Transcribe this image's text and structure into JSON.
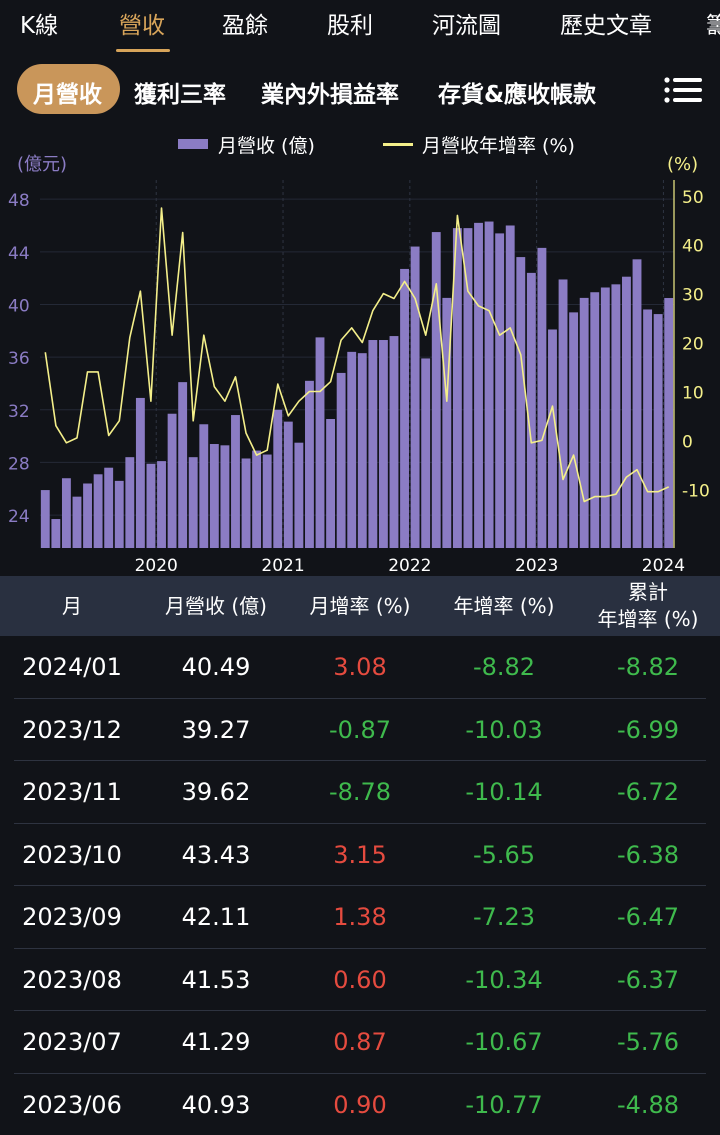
{
  "top_tabs": [
    {
      "label": "K線",
      "active": false
    },
    {
      "label": "營收",
      "active": true
    },
    {
      "label": "盈餘",
      "active": false
    },
    {
      "label": "股利",
      "active": false
    },
    {
      "label": "河流圖",
      "active": false
    },
    {
      "label": "歷史文章",
      "active": false
    },
    {
      "label": "籌",
      "active": false
    }
  ],
  "sub_tabs": [
    {
      "label": "月營收",
      "active": true
    },
    {
      "label": "獲利三率",
      "active": false
    },
    {
      "label": "業內外損益率",
      "active": false
    },
    {
      "label": "存貨&應收帳款",
      "active": false
    }
  ],
  "menu_icon": "menu-icon",
  "colors": {
    "accent": "#c9965a",
    "bar": "#8b7cc4",
    "line": "#f4ef8a",
    "positive": "#e54b3f",
    "negative": "#3fba4d"
  },
  "chart_data": {
    "type": "bar+line",
    "left_axis_label": "(億元)",
    "right_axis_label": "(%)",
    "legend": [
      {
        "name": "月營收 (億)",
        "type": "bar"
      },
      {
        "name": "月營收年增率 (%)",
        "type": "line"
      }
    ],
    "left_ylim": [
      21.5,
      49
    ],
    "left_ticks": [
      "48",
      "44",
      "40",
      "36",
      "32",
      "28",
      "24"
    ],
    "right_ylim": [
      -22,
      52
    ],
    "right_ticks": [
      "50",
      "40",
      "30",
      "20",
      "10",
      "0",
      "-10"
    ],
    "x_ticks": [
      "2020",
      "2021",
      "2022",
      "2023",
      "2024"
    ],
    "grid": true,
    "x_start": "2019/02",
    "series": [
      {
        "name": "月營收 (億)",
        "values": [
          25.9,
          23.7,
          26.8,
          25.4,
          26.4,
          27.1,
          27.6,
          26.6,
          28.4,
          32.9,
          27.9,
          28.1,
          31.7,
          34.1,
          28.4,
          30.9,
          29.4,
          29.3,
          31.6,
          28.3,
          28.9,
          28.6,
          32.0,
          31.1,
          29.5,
          34.2,
          37.5,
          31.3,
          34.8,
          36.4,
          36.3,
          37.3,
          37.3,
          37.6,
          42.7,
          44.4,
          35.9,
          45.5,
          40.5,
          45.8,
          45.8,
          46.2,
          46.3,
          45.4,
          46.0,
          43.6,
          42.4,
          44.3,
          38.1,
          41.9,
          39.4,
          40.5,
          40.93,
          41.29,
          41.53,
          42.11,
          43.43,
          39.62,
          39.27,
          40.49
        ]
      },
      {
        "name": "月營收年增率 (%)",
        "values": [
          18.0,
          3.0,
          -0.5,
          0.5,
          14.0,
          14.0,
          1.0,
          4.0,
          21.0,
          30.5,
          8.0,
          47.5,
          21.5,
          42.5,
          4.0,
          21.5,
          11.0,
          8.0,
          13.0,
          1.5,
          -3.0,
          -2.0,
          11.5,
          5.0,
          8.0,
          10.0,
          10.0,
          12.0,
          20.5,
          23.0,
          20.0,
          26.5,
          30.0,
          29.0,
          32.5,
          29.0,
          21.5,
          32.0,
          8.0,
          46.0,
          30.5,
          27.5,
          26.5,
          21.5,
          23.0,
          17.5,
          -0.5,
          0.0,
          7.0,
          -8.0,
          -3.0,
          -12.5,
          -11.5,
          -11.5,
          -11.0,
          -7.5,
          -6.0,
          -10.5,
          -10.5,
          -9.5
        ]
      }
    ]
  },
  "table": {
    "headers": [
      "月",
      "月營收 (億)",
      "月增率 (%)",
      "年增率 (%)",
      "累計\n年增率 (%)"
    ],
    "rows": [
      {
        "month": "2024/01",
        "revenue": "40.49",
        "mom": "3.08",
        "yoy": "-8.82",
        "cum": "-8.82"
      },
      {
        "month": "2023/12",
        "revenue": "39.27",
        "mom": "-0.87",
        "yoy": "-10.03",
        "cum": "-6.99"
      },
      {
        "month": "2023/11",
        "revenue": "39.62",
        "mom": "-8.78",
        "yoy": "-10.14",
        "cum": "-6.72"
      },
      {
        "month": "2023/10",
        "revenue": "43.43",
        "mom": "3.15",
        "yoy": "-5.65",
        "cum": "-6.38"
      },
      {
        "month": "2023/09",
        "revenue": "42.11",
        "mom": "1.38",
        "yoy": "-7.23",
        "cum": "-6.47"
      },
      {
        "month": "2023/08",
        "revenue": "41.53",
        "mom": "0.60",
        "yoy": "-10.34",
        "cum": "-6.37"
      },
      {
        "month": "2023/07",
        "revenue": "41.29",
        "mom": "0.87",
        "yoy": "-10.67",
        "cum": "-5.76"
      },
      {
        "month": "2023/06",
        "revenue": "40.93",
        "mom": "0.90",
        "yoy": "-10.77",
        "cum": "-4.88"
      }
    ]
  }
}
